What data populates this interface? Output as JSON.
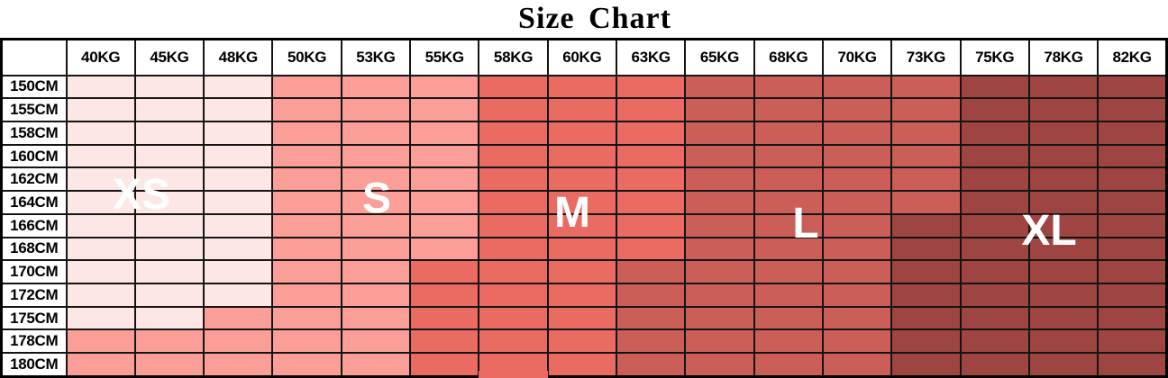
{
  "title": "Size Chart",
  "chart_data": {
    "type": "heatmap",
    "title": "Size Chart",
    "x_labels": [
      "40KG",
      "45KG",
      "48KG",
      "50KG",
      "53KG",
      "55KG",
      "58KG",
      "60KG",
      "63KG",
      "65KG",
      "68KG",
      "70KG",
      "73KG",
      "75KG",
      "78KG",
      "82KG"
    ],
    "y_labels": [
      "150CM",
      "155CM",
      "158CM",
      "160CM",
      "162CM",
      "164CM",
      "166CM",
      "168CM",
      "170CM",
      "172CM",
      "175CM",
      "178CM",
      "180CM"
    ],
    "size_zone_labels": [
      "XS",
      "S",
      "M",
      "L",
      "XL"
    ],
    "size_colors": {
      "XS": "#fce7e5",
      "S": "#fb9e97",
      "M": "#e96b61",
      "L": "#cb5f58",
      "XL": "#9e4441"
    },
    "grid_border_color": "#141414",
    "header_background": "#ffffff",
    "cell_sizes": [
      [
        "XS",
        "XS",
        "XS",
        "S",
        "S",
        "S",
        "M",
        "M",
        "M",
        "L",
        "L",
        "L",
        "L",
        "XL",
        "XL",
        "XL"
      ],
      [
        "XS",
        "XS",
        "XS",
        "S",
        "S",
        "S",
        "M",
        "M",
        "M",
        "L",
        "L",
        "L",
        "L",
        "XL",
        "XL",
        "XL"
      ],
      [
        "XS",
        "XS",
        "XS",
        "S",
        "S",
        "S",
        "M",
        "M",
        "M",
        "L",
        "L",
        "L",
        "L",
        "XL",
        "XL",
        "XL"
      ],
      [
        "XS",
        "XS",
        "XS",
        "S",
        "S",
        "S",
        "M",
        "M",
        "M",
        "L",
        "L",
        "L",
        "L",
        "XL",
        "XL",
        "XL"
      ],
      [
        "XS",
        "XS",
        "XS",
        "S",
        "S",
        "S",
        "M",
        "M",
        "M",
        "L",
        "L",
        "L",
        "L",
        "XL",
        "XL",
        "XL"
      ],
      [
        "XS",
        "XS",
        "XS",
        "S",
        "S",
        "S",
        "M",
        "M",
        "M",
        "L",
        "L",
        "L",
        "L",
        "XL",
        "XL",
        "XL"
      ],
      [
        "XS",
        "XS",
        "XS",
        "S",
        "S",
        "S",
        "M",
        "M",
        "M",
        "L",
        "L",
        "L",
        "XL",
        "XL",
        "XL",
        "XL"
      ],
      [
        "XS",
        "XS",
        "XS",
        "S",
        "S",
        "S",
        "M",
        "M",
        "M",
        "L",
        "L",
        "L",
        "XL",
        "XL",
        "XL",
        "XL"
      ],
      [
        "XS",
        "XS",
        "XS",
        "S",
        "S",
        "M",
        "M",
        "M",
        "L",
        "L",
        "L",
        "L",
        "XL",
        "XL",
        "XL",
        "XL"
      ],
      [
        "XS",
        "XS",
        "XS",
        "S",
        "S",
        "M",
        "M",
        "M",
        "L",
        "L",
        "L",
        "L",
        "XL",
        "XL",
        "XL",
        "XL"
      ],
      [
        "XS",
        "XS",
        "S",
        "S",
        "S",
        "M",
        "M",
        "M",
        "L",
        "L",
        "L",
        "L",
        "XL",
        "XL",
        "XL",
        "XL"
      ],
      [
        "S",
        "S",
        "S",
        "S",
        "S",
        "M",
        "M",
        "M",
        "L",
        "L",
        "L",
        "L",
        "XL",
        "XL",
        "XL",
        "XL"
      ],
      [
        "S",
        "S",
        "S",
        "S",
        "S",
        "M",
        "M",
        "M",
        "L",
        "L",
        "L",
        "L",
        "XL",
        "XL",
        "XL",
        "XL"
      ]
    ]
  },
  "table": {
    "corner_label": ""
  },
  "visual_artifacts": {
    "thick_border_cell": {
      "height": "162CM",
      "weight": "50KG",
      "edge": "bottom"
    },
    "border_bleed": {
      "weight": "58KG",
      "edge": "bottom",
      "size": "M"
    }
  }
}
